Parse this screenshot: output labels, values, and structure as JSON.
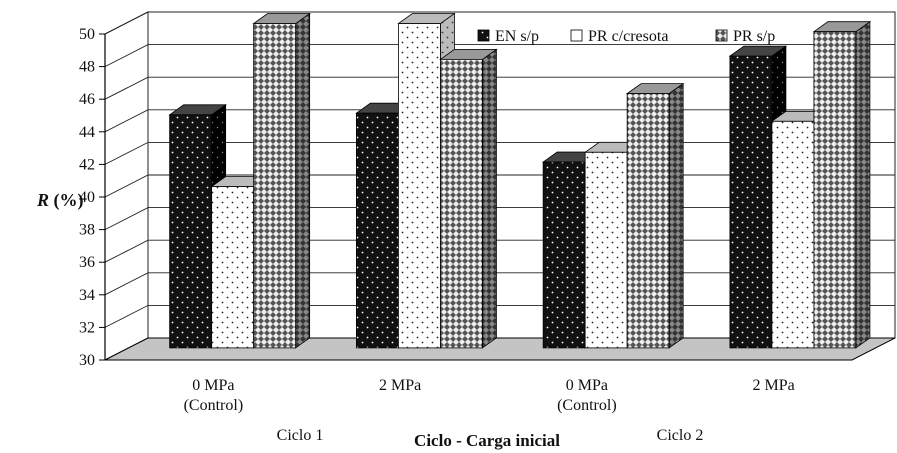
{
  "chart_data": {
    "type": "bar",
    "ylabel_var": "R",
    "ylabel_unit": " (%)",
    "xlabel": "Ciclo - Carga inicial",
    "ylim": [
      30,
      50
    ],
    "yticks": [
      "30",
      "32",
      "34",
      "36",
      "38",
      "40",
      "42",
      "44",
      "46",
      "48",
      "50"
    ],
    "categories": [
      {
        "line1": "0 MPa",
        "line2": "(Control)"
      },
      {
        "line1": "2 MPa",
        "line2": ""
      },
      {
        "line1": "0 MPa",
        "line2": "(Control)"
      },
      {
        "line1": "2 MPa",
        "line2": ""
      }
    ],
    "groups": [
      "Ciclo 1",
      "Ciclo 2"
    ],
    "legend_position": "top-right",
    "grid": true,
    "series": [
      {
        "name": "EN s/p",
        "values": [
          44.3,
          44.4,
          41.4,
          47.9
        ],
        "fill": "#111111",
        "pattern": "dark-dots"
      },
      {
        "name": "PR c/cresota",
        "values": [
          39.9,
          49.9,
          42.0,
          43.9
        ],
        "fill": "#ffffff",
        "pattern": "light-dots"
      },
      {
        "name": "PR s/p",
        "values": [
          49.9,
          47.7,
          45.6,
          49.4
        ],
        "fill": "#7a7a7a",
        "pattern": "checker"
      }
    ],
    "colors": {
      "floor": "#c4c4c4",
      "grid": "#222222"
    }
  }
}
